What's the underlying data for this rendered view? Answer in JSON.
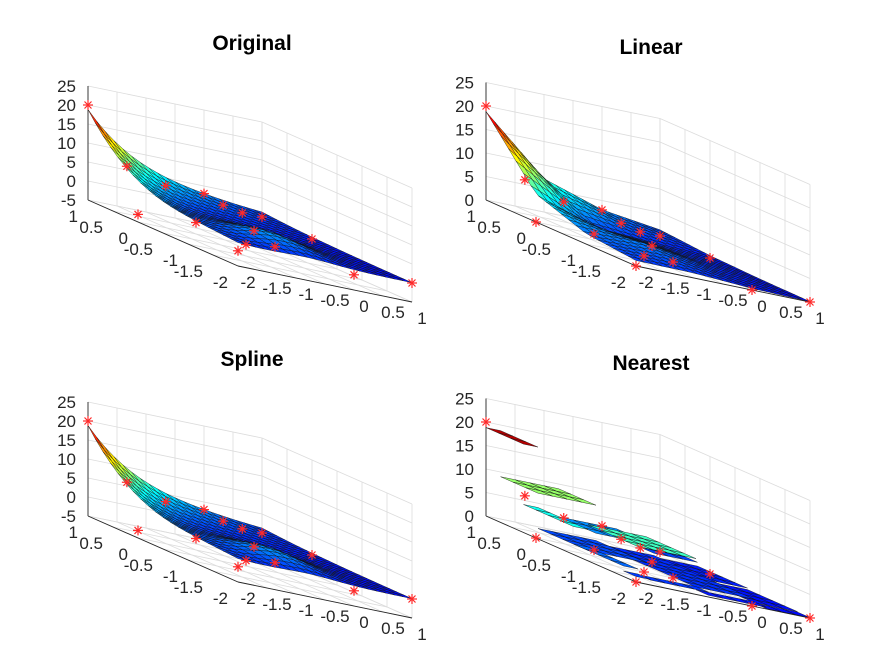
{
  "chart_data": {
    "type": "surface",
    "x": [
      -2,
      -1.5,
      -1,
      -0.5,
      0,
      0.5,
      1
    ],
    "y": [
      -2,
      -1.5,
      -1,
      -0.5,
      0,
      0.5,
      1
    ],
    "sample_points": [
      {
        "x": -2,
        "y": 1,
        "z": 20
      },
      {
        "x": -1.33,
        "y": 1,
        "z": 6
      },
      {
        "x": -0.66,
        "y": 1,
        "z": 3
      },
      {
        "x": 0,
        "y": 1,
        "z": 3
      },
      {
        "x": 0.33,
        "y": 1,
        "z": 1
      },
      {
        "x": 0.66,
        "y": 1,
        "z": 0
      },
      {
        "x": 1,
        "y": 1,
        "z": 0
      },
      {
        "x": -2,
        "y": 0,
        "z": -3
      },
      {
        "x": -1,
        "y": 0,
        "z": -2
      },
      {
        "x": 0,
        "y": 0,
        "z": -1
      },
      {
        "x": 1,
        "y": 0,
        "z": 0
      },
      {
        "x": -2,
        "y": -2,
        "z": -1
      },
      {
        "x": -1,
        "y": -1,
        "z": -2
      },
      {
        "x": 0,
        "y": -2,
        "z": -1
      },
      {
        "x": 1,
        "y": -2,
        "z": 0
      },
      {
        "x": -0.5,
        "y": -1,
        "z": -1
      }
    ],
    "colormap": "jet",
    "marker_color": "#ff2a2a",
    "grid": true,
    "plots": [
      {
        "title": "Original",
        "interp": "smooth",
        "zlim": [
          -5,
          25
        ],
        "zticks": [
          "25",
          "20",
          "15",
          "10",
          "5",
          "0",
          "-5"
        ]
      },
      {
        "title": "Linear",
        "interp": "linear",
        "zlim": [
          0,
          25
        ],
        "zticks": [
          "25",
          "20",
          "15",
          "10",
          "5",
          "0"
        ]
      },
      {
        "title": "Spline",
        "interp": "smooth",
        "zlim": [
          -5,
          25
        ],
        "zticks": [
          "25",
          "20",
          "15",
          "10",
          "5",
          "0",
          "-5"
        ]
      },
      {
        "title": "Nearest",
        "interp": "nearest",
        "zlim": [
          0,
          25
        ],
        "zticks": [
          "25",
          "20",
          "15",
          "10",
          "5",
          "0"
        ]
      }
    ],
    "yticks": [
      "1",
      "0.5",
      "0",
      "-0.5",
      "-1",
      "-1.5",
      "-2"
    ],
    "xticks": [
      "-2",
      "-1.5",
      "-1",
      "-0.5",
      "0",
      "0.5",
      "1"
    ]
  }
}
